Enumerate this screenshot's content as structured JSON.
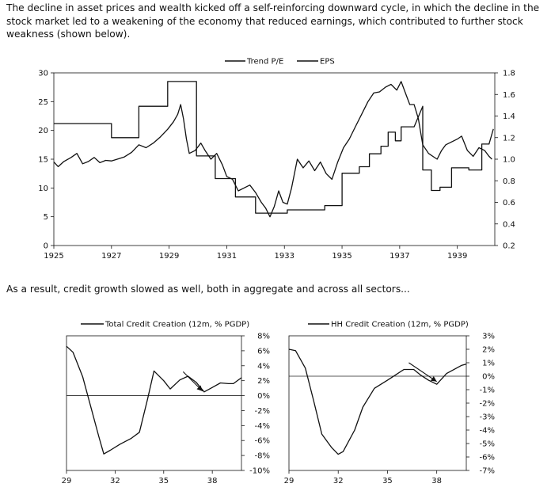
{
  "text": {
    "intro": "The decline in asset prices and wealth kicked off a self-reinforcing downward cycle, in which the decline in the stock market led to a weakening of the economy that reduced earnings, which contributed to further stock weakness (shown below).",
    "transition": "As a result, credit growth slowed as well, both in aggregate and across all sectors..."
  },
  "chart_data": [
    {
      "type": "line",
      "title": "",
      "legend_position": "top",
      "x_ticks": [
        "1925",
        "1927",
        "1929",
        "1931",
        "1933",
        "1935",
        "1937",
        "1939"
      ],
      "xlim": [
        1925,
        1940.3
      ],
      "left_axis": {
        "ticks": [
          "30",
          "25",
          "20",
          "15",
          "10",
          "5",
          "0"
        ],
        "ylim": [
          0,
          30
        ]
      },
      "right_axis": {
        "ticks": [
          "1.8",
          "1.6",
          "1.4",
          "1.2",
          "1.0",
          "0.8",
          "0.6",
          "0.4",
          "0.2"
        ],
        "ylim": [
          0.2,
          1.8
        ]
      },
      "series": [
        {
          "name": "Trend P/E",
          "axis": "left",
          "points": [
            [
              1925,
              14.5
            ],
            [
              1925.15,
              13.7
            ],
            [
              1925.35,
              14.6
            ],
            [
              1925.6,
              15.3
            ],
            [
              1925.8,
              16
            ],
            [
              1926,
              14.2
            ],
            [
              1926.2,
              14.6
            ],
            [
              1926.4,
              15.3
            ],
            [
              1926.6,
              14.4
            ],
            [
              1926.8,
              14.8
            ],
            [
              1927,
              14.7
            ],
            [
              1927.2,
              15
            ],
            [
              1927.45,
              15.4
            ],
            [
              1927.7,
              16.2
            ],
            [
              1927.95,
              17.5
            ],
            [
              1928.2,
              17
            ],
            [
              1928.45,
              17.8
            ],
            [
              1928.7,
              18.9
            ],
            [
              1928.95,
              20.2
            ],
            [
              1929.15,
              21.5
            ],
            [
              1929.3,
              22.8
            ],
            [
              1929.4,
              24.5
            ],
            [
              1929.5,
              22
            ],
            [
              1929.6,
              18.5
            ],
            [
              1929.7,
              16
            ],
            [
              1929.9,
              16.5
            ],
            [
              1930.1,
              17.8
            ],
            [
              1930.25,
              16.5
            ],
            [
              1930.45,
              15
            ],
            [
              1930.65,
              16
            ],
            [
              1930.85,
              14
            ],
            [
              1931,
              12
            ],
            [
              1931.2,
              11.5
            ],
            [
              1931.4,
              9.5
            ],
            [
              1931.6,
              10
            ],
            [
              1931.8,
              10.5
            ],
            [
              1932,
              9.2
            ],
            [
              1932.2,
              7.5
            ],
            [
              1932.35,
              6.5
            ],
            [
              1932.5,
              5
            ],
            [
              1932.65,
              6.8
            ],
            [
              1932.8,
              9.5
            ],
            [
              1932.95,
              7.5
            ],
            [
              1933.1,
              7.2
            ],
            [
              1933.25,
              10
            ],
            [
              1933.45,
              15
            ],
            [
              1933.65,
              13.5
            ],
            [
              1933.85,
              14.7
            ],
            [
              1934.05,
              13
            ],
            [
              1934.25,
              14.5
            ],
            [
              1934.45,
              12.5
            ],
            [
              1934.65,
              11.5
            ],
            [
              1934.85,
              14.5
            ],
            [
              1935.05,
              17
            ],
            [
              1935.25,
              18.5
            ],
            [
              1935.45,
              20.5
            ],
            [
              1935.7,
              23
            ],
            [
              1935.9,
              25
            ],
            [
              1936.1,
              26.5
            ],
            [
              1936.3,
              26.7
            ],
            [
              1936.5,
              27.5
            ],
            [
              1936.7,
              28
            ],
            [
              1936.9,
              27
            ],
            [
              1937.05,
              28.5
            ],
            [
              1937.2,
              26.5
            ],
            [
              1937.35,
              24.5
            ],
            [
              1937.5,
              24.5
            ],
            [
              1937.65,
              22
            ],
            [
              1937.8,
              17.5
            ],
            [
              1938,
              16
            ],
            [
              1938.15,
              15.5
            ],
            [
              1938.3,
              15
            ],
            [
              1938.45,
              16.5
            ],
            [
              1938.6,
              17.5
            ],
            [
              1938.8,
              18
            ],
            [
              1939,
              18.5
            ],
            [
              1939.15,
              19
            ],
            [
              1939.35,
              16.5
            ],
            [
              1939.55,
              15.5
            ],
            [
              1939.75,
              17
            ],
            [
              1939.95,
              16.5
            ],
            [
              1940.1,
              15.5
            ],
            [
              1940.2,
              15
            ]
          ]
        },
        {
          "name": "EPS",
          "axis": "right",
          "points": [
            [
              1925,
              1.33
            ],
            [
              1927,
              1.33
            ],
            [
              1927,
              1.2
            ],
            [
              1927.95,
              1.2
            ],
            [
              1927.95,
              1.49
            ],
            [
              1928.95,
              1.49
            ],
            [
              1928.95,
              1.72
            ],
            [
              1929.95,
              1.72
            ],
            [
              1929.95,
              1.03
            ],
            [
              1930.6,
              1.03
            ],
            [
              1930.6,
              0.82
            ],
            [
              1931.3,
              0.82
            ],
            [
              1931.3,
              0.65
            ],
            [
              1932,
              0.65
            ],
            [
              1932,
              0.5
            ],
            [
              1933.1,
              0.5
            ],
            [
              1933.1,
              0.53
            ],
            [
              1934.4,
              0.53
            ],
            [
              1934.4,
              0.57
            ],
            [
              1935,
              0.57
            ],
            [
              1935,
              0.87
            ],
            [
              1935.6,
              0.87
            ],
            [
              1935.6,
              0.93
            ],
            [
              1935.95,
              0.93
            ],
            [
              1935.95,
              1.05
            ],
            [
              1936.35,
              1.05
            ],
            [
              1936.35,
              1.12
            ],
            [
              1936.6,
              1.12
            ],
            [
              1936.6,
              1.25
            ],
            [
              1936.85,
              1.25
            ],
            [
              1936.85,
              1.17
            ],
            [
              1937.05,
              1.17
            ],
            [
              1937.05,
              1.3
            ],
            [
              1937.5,
              1.3
            ],
            [
              1937.8,
              1.49
            ],
            [
              1937.8,
              0.9
            ],
            [
              1938.1,
              0.9
            ],
            [
              1938.1,
              0.71
            ],
            [
              1938.4,
              0.71
            ],
            [
              1938.4,
              0.74
            ],
            [
              1938.8,
              0.74
            ],
            [
              1938.8,
              0.92
            ],
            [
              1939.4,
              0.92
            ],
            [
              1939.4,
              0.9
            ],
            [
              1939.85,
              0.9
            ],
            [
              1939.85,
              1.14
            ],
            [
              1940.1,
              1.14
            ],
            [
              1940.25,
              1.28
            ]
          ]
        }
      ]
    },
    {
      "type": "line",
      "title": "",
      "legend_position": "top",
      "x_ticks": [
        "29",
        "32",
        "35",
        "38"
      ],
      "xlim": [
        29,
        39.8
      ],
      "ylim": [
        -10,
        8
      ],
      "y_ticks": [
        "8%",
        "6%",
        "4%",
        "2%",
        "0%",
        "-2%",
        "-4%",
        "-6%",
        "-8%",
        "-10%"
      ],
      "series": [
        {
          "name": "Total Credit Creation (12m, % PGDP)",
          "values": [
            [
              29,
              6.6
            ],
            [
              29.4,
              5.8
            ],
            [
              30,
              2.5
            ],
            [
              30.5,
              -1.5
            ],
            [
              31,
              -5.5
            ],
            [
              31.3,
              -7.8
            ],
            [
              31.7,
              -7.3
            ],
            [
              32.3,
              -6.5
            ],
            [
              33,
              -5.7
            ],
            [
              33.5,
              -4.9
            ],
            [
              34,
              -0.5
            ],
            [
              34.4,
              3.3
            ],
            [
              35,
              2
            ],
            [
              35.4,
              0.9
            ],
            [
              36,
              2.1
            ],
            [
              36.5,
              2.6
            ],
            [
              37,
              1.8
            ],
            [
              37.5,
              0.5
            ],
            [
              38,
              1.1
            ],
            [
              38.5,
              1.7
            ],
            [
              39,
              1.6
            ],
            [
              39.3,
              1.6
            ],
            [
              39.8,
              2.4
            ]
          ]
        }
      ],
      "annotations": [
        {
          "type": "arrow",
          "from": [
            36.2,
            3.2
          ],
          "to": [
            37.4,
            0.6
          ]
        }
      ]
    },
    {
      "type": "line",
      "title": "",
      "legend_position": "top",
      "x_ticks": [
        "29",
        "32",
        "35",
        "38"
      ],
      "xlim": [
        29,
        39.8
      ],
      "ylim": [
        -7,
        3
      ],
      "y_ticks": [
        "3%",
        "2%",
        "1%",
        "0%",
        "-1%",
        "-2%",
        "-3%",
        "-4%",
        "-5%",
        "-6%",
        "-7%"
      ],
      "series": [
        {
          "name": "HH Credit Creation (12m, % PGDP)",
          "values": [
            [
              29,
              2
            ],
            [
              29.4,
              1.9
            ],
            [
              30,
              0.6
            ],
            [
              30.5,
              -1.8
            ],
            [
              31,
              -4.3
            ],
            [
              31.6,
              -5.3
            ],
            [
              32,
              -5.8
            ],
            [
              32.3,
              -5.6
            ],
            [
              33,
              -4
            ],
            [
              33.5,
              -2.3
            ],
            [
              34.2,
              -0.9
            ],
            [
              35,
              -0.3
            ],
            [
              35.5,
              0.1
            ],
            [
              36,
              0.5
            ],
            [
              36.6,
              0.5
            ],
            [
              37,
              0.1
            ],
            [
              37.5,
              -0.3
            ],
            [
              38,
              -0.6
            ],
            [
              38.6,
              0.2
            ],
            [
              39.2,
              0.6
            ],
            [
              39.5,
              0.8
            ],
            [
              39.8,
              0.9
            ]
          ]
        }
      ],
      "annotations": [
        {
          "type": "arrow",
          "from": [
            36.3,
            1
          ],
          "to": [
            38,
            -0.4
          ]
        }
      ]
    }
  ]
}
